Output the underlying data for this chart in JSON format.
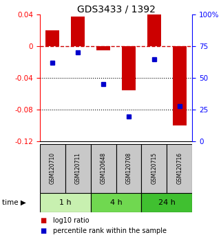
{
  "title": "GDS3433 / 1392",
  "samples": [
    "GSM120710",
    "GSM120711",
    "GSM120648",
    "GSM120708",
    "GSM120715",
    "GSM120716"
  ],
  "log10_ratio": [
    0.02,
    0.038,
    -0.005,
    -0.055,
    0.04,
    -0.1
  ],
  "percentile_rank": [
    62,
    70,
    45,
    20,
    65,
    28
  ],
  "time_groups": [
    {
      "label": "1 h",
      "samples": [
        0,
        1
      ],
      "color": "#c8f0b0"
    },
    {
      "label": "4 h",
      "samples": [
        2,
        3
      ],
      "color": "#70d850"
    },
    {
      "label": "24 h",
      "samples": [
        4,
        5
      ],
      "color": "#40c030"
    }
  ],
  "ylim_left": [
    -0.12,
    0.04
  ],
  "ylim_right": [
    0,
    100
  ],
  "yticks_left": [
    0.04,
    0.0,
    -0.04,
    -0.08,
    -0.12
  ],
  "ytick_labels_left": [
    "0.04",
    "0",
    "-0.04",
    "-0.08",
    "-0.12"
  ],
  "yticks_right": [
    100,
    75,
    50,
    25,
    0
  ],
  "ytick_labels_right": [
    "100%",
    "75",
    "50",
    "25",
    "0"
  ],
  "bar_color": "#cc0000",
  "dot_color": "#0000cc",
  "bar_width": 0.55,
  "background_color": "#ffffff",
  "hline_zero_color": "#cc0000",
  "hline_dotted_color": "#000000",
  "legend_bar_label": "log10 ratio",
  "legend_dot_label": "percentile rank within the sample",
  "time_label": "time",
  "label_area_color": "#c8c8c8"
}
